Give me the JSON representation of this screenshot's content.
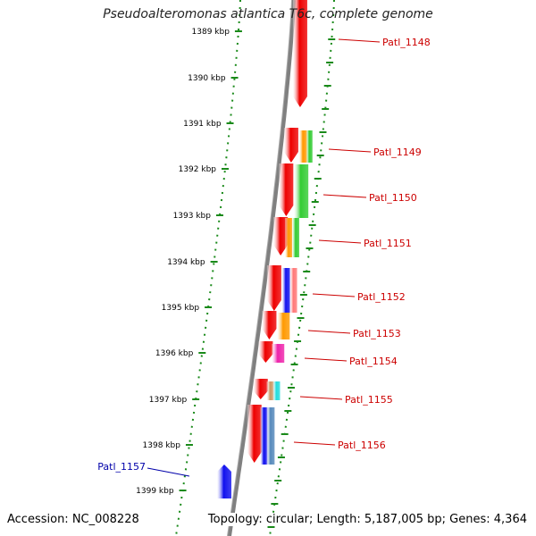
{
  "title": "Pseudoalteromonas atlantica T6c, complete genome",
  "accession": "Accession: NC_008228",
  "topology": "Topology: circular; Length: 5,187,005 bp; Genes: 4,364",
  "colors": {
    "backbone": "#808080",
    "tick": "#1a8a1a",
    "gene_label": "#cc0000",
    "minus_label": "#0000aa",
    "red": "#ee0000",
    "blue": "#1111ee",
    "green": "#33cc33",
    "orange": "#ff9900",
    "pink": "#ff7777",
    "magenta": "#ee22aa",
    "cyan": "#22dddd",
    "tan": "#cc9966",
    "slate": "#5588bb"
  },
  "kbp_labels": [
    "1389 kbp",
    "1390 kbp",
    "1391 kbp",
    "1392 kbp",
    "1393 kbp",
    "1394 kbp",
    "1395 kbp",
    "1396 kbp",
    "1397 kbp",
    "1398 kbp",
    "1399 kbp"
  ],
  "genes": [
    {
      "name": "Patl_1148",
      "strand": "plus"
    },
    {
      "name": "Patl_1149",
      "strand": "plus"
    },
    {
      "name": "Patl_1150",
      "strand": "plus"
    },
    {
      "name": "Patl_1151",
      "strand": "plus"
    },
    {
      "name": "Patl_1152",
      "strand": "plus"
    },
    {
      "name": "Patl_1153",
      "strand": "plus"
    },
    {
      "name": "Patl_1154",
      "strand": "plus"
    },
    {
      "name": "Patl_1155",
      "strand": "plus"
    },
    {
      "name": "Patl_1156",
      "strand": "plus"
    },
    {
      "name": "Patl_1157",
      "strand": "minus"
    }
  ]
}
